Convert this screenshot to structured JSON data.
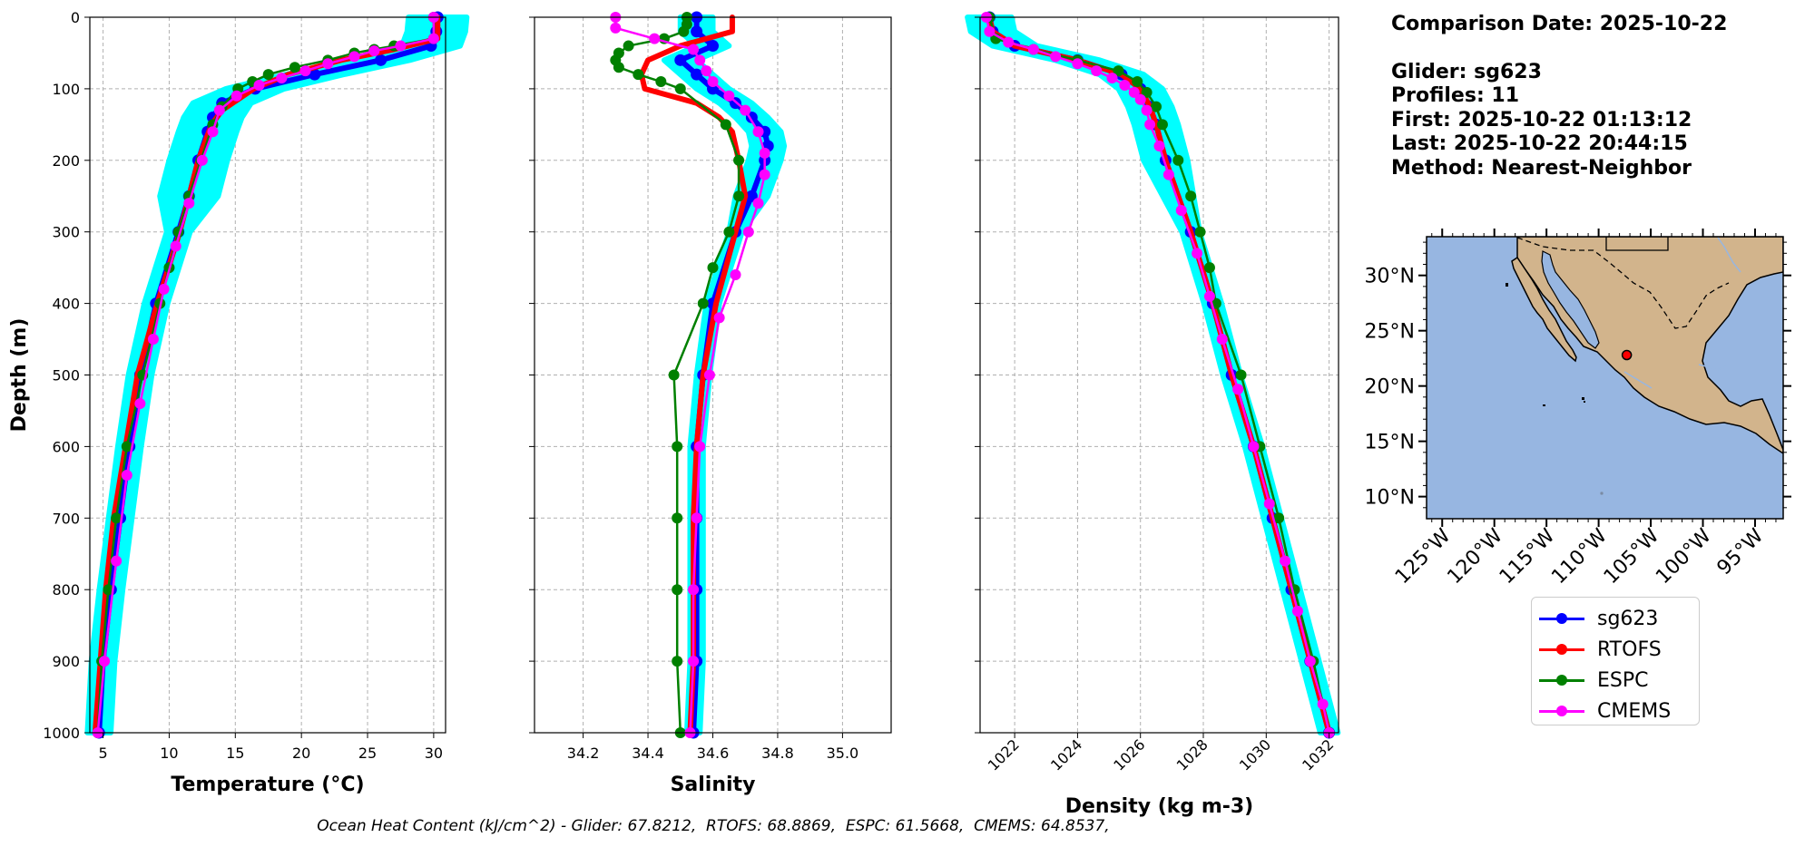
{
  "info": {
    "comparison": "Comparison Date: 2025-10-22",
    "glider": "Glider: sg623",
    "profiles": "Profiles: 11",
    "first": "First: 2025-10-22 01:13:12",
    "last": "Last: 2025-10-22 20:44:15",
    "method": "Method: Nearest-Neighbor"
  },
  "footer": "Ocean Heat Content (kJ/cm^2) - Glider: 67.8212,  RTOFS: 68.8869,  ESPC: 61.5668,  CMEMS: 64.8537,",
  "legend": [
    {
      "label": "sg623",
      "color": "#0000ff"
    },
    {
      "label": "RTOFS",
      "color": "#ff0000"
    },
    {
      "label": "ESPC",
      "color": "#008000"
    },
    {
      "label": "CMEMS",
      "color": "#ff00ff"
    }
  ],
  "colors": {
    "glider_profiles": "#00ffff",
    "sg623": "#0000ff",
    "RTOFS": "#ff0000",
    "ESPC": "#008000",
    "CMEMS": "#ff00ff",
    "ocean": "#97b6e1",
    "land": "#d2b48c",
    "glider_marker": "#ff0000"
  },
  "chart_data": [
    {
      "type": "line",
      "xlabel": "Temperature (°C)",
      "ylabel": "Depth (m)",
      "xlim": [
        4,
        30.9
      ],
      "ylim": [
        1000,
        0
      ],
      "xticks": [
        5,
        10,
        15,
        20,
        25,
        30
      ],
      "yticks": [
        0,
        100,
        200,
        300,
        400,
        500,
        600,
        700,
        800,
        900,
        1000
      ],
      "grid": true,
      "series": [
        {
          "name": "sg623",
          "depth": [
            0,
            20,
            40,
            60,
            80,
            100,
            120,
            140,
            160,
            200,
            250,
            300,
            400,
            500,
            600,
            700,
            800,
            900,
            1000
          ],
          "values": [
            30.3,
            30.2,
            29.8,
            26,
            21,
            16.5,
            14,
            13.3,
            12.9,
            12.2,
            11.5,
            10.7,
            9,
            7.8,
            7,
            6.3,
            5.6,
            5,
            4.7
          ]
        },
        {
          "name": "RTOFS",
          "depth": [
            0,
            30,
            45,
            60,
            80,
            100,
            130,
            150,
            200,
            300,
            400,
            500,
            600,
            700,
            800,
            900,
            1000
          ],
          "values": [
            30.3,
            30.3,
            27,
            23,
            19,
            16.4,
            14,
            13.2,
            12.2,
            10.8,
            9.1,
            7.6,
            6.7,
            5.8,
            5.2,
            4.8,
            4.4
          ]
        },
        {
          "name": "ESPC",
          "depth": [
            0,
            30,
            40,
            45,
            50,
            60,
            70,
            80,
            90,
            100,
            125,
            150,
            200,
            250,
            300,
            350,
            400,
            500,
            600,
            700,
            800,
            900,
            1000
          ],
          "values": [
            30,
            30,
            27,
            25.5,
            24,
            22,
            19.5,
            17.5,
            16.3,
            15.2,
            14,
            13.3,
            12.4,
            11.5,
            10.7,
            10,
            9.3,
            8,
            6.8,
            6,
            5.4,
            4.9,
            4.6
          ]
        },
        {
          "name": "CMEMS",
          "depth": [
            0,
            30,
            40,
            47,
            55,
            65,
            75,
            85,
            95,
            110,
            130,
            160,
            200,
            260,
            320,
            380,
            450,
            540,
            640,
            760,
            900,
            1000
          ],
          "values": [
            30,
            30,
            27.5,
            25.5,
            24,
            22,
            20.3,
            18.5,
            16.8,
            15.1,
            13.8,
            13.3,
            12.5,
            11.5,
            10.5,
            9.6,
            8.8,
            7.8,
            6.8,
            6,
            5.1,
            4.6
          ]
        }
      ]
    },
    {
      "type": "line",
      "xlabel": "Salinity",
      "ylabel": "",
      "xlim": [
        34.05,
        35.15
      ],
      "ylim": [
        1000,
        0
      ],
      "xticks": [
        34.2,
        34.4,
        34.6,
        34.8,
        35.0
      ],
      "grid": true,
      "series": [
        {
          "name": "sg623",
          "depth": [
            0,
            20,
            40,
            60,
            80,
            100,
            120,
            140,
            160,
            180,
            200,
            250,
            300,
            400,
            500,
            600,
            700,
            800,
            900,
            1000
          ],
          "values": [
            34.55,
            34.55,
            34.6,
            34.5,
            34.55,
            34.6,
            34.67,
            34.72,
            34.76,
            34.77,
            34.76,
            34.72,
            34.67,
            34.6,
            34.57,
            34.55,
            34.55,
            34.55,
            34.55,
            34.54
          ]
        },
        {
          "name": "RTOFS",
          "depth": [
            0,
            20,
            40,
            60,
            80,
            100,
            120,
            140,
            160,
            200,
            250,
            300,
            400,
            500,
            600,
            700,
            800,
            900,
            1000
          ],
          "values": [
            34.66,
            34.66,
            34.5,
            34.4,
            34.38,
            34.39,
            34.55,
            34.62,
            34.66,
            34.68,
            34.7,
            34.67,
            34.61,
            34.57,
            34.55,
            34.54,
            34.54,
            34.54,
            34.53
          ]
        },
        {
          "name": "ESPC",
          "depth": [
            0,
            10,
            20,
            30,
            40,
            50,
            60,
            70,
            80,
            90,
            100,
            150,
            200,
            250,
            300,
            350,
            400,
            500,
            600,
            700,
            800,
            900,
            1000
          ],
          "values": [
            34.52,
            34.52,
            34.51,
            34.45,
            34.34,
            34.31,
            34.3,
            34.31,
            34.37,
            34.44,
            34.5,
            34.64,
            34.68,
            34.68,
            34.65,
            34.6,
            34.57,
            34.48,
            34.49,
            34.49,
            34.49,
            34.49,
            34.5
          ]
        },
        {
          "name": "CMEMS",
          "depth": [
            0,
            15,
            30,
            45,
            60,
            75,
            90,
            110,
            130,
            160,
            190,
            220,
            260,
            300,
            360,
            420,
            500,
            600,
            700,
            800,
            900,
            1000
          ],
          "values": [
            34.3,
            34.3,
            34.42,
            34.54,
            34.56,
            34.58,
            34.6,
            34.65,
            34.7,
            34.74,
            34.76,
            34.76,
            34.74,
            34.71,
            34.67,
            34.62,
            34.59,
            34.56,
            34.55,
            34.54,
            34.54,
            34.53
          ]
        }
      ]
    },
    {
      "type": "line",
      "xlabel": "Density (kg m-3)",
      "ylabel": "",
      "xlim": [
        1020.9,
        1032.3
      ],
      "ylim": [
        1000,
        0
      ],
      "xticks": [
        1022,
        1024,
        1026,
        1028,
        1030,
        1032
      ],
      "grid": true,
      "series": [
        {
          "name": "sg623",
          "depth": [
            0,
            20,
            40,
            60,
            80,
            100,
            125,
            150,
            200,
            300,
            400,
            500,
            600,
            700,
            800,
            900,
            1000
          ],
          "values": [
            1021.2,
            1021.3,
            1022,
            1024,
            1025.4,
            1026,
            1026.3,
            1026.5,
            1026.8,
            1027.6,
            1028.3,
            1028.9,
            1029.6,
            1030.2,
            1030.8,
            1031.4,
            1032
          ]
        },
        {
          "name": "RTOFS",
          "depth": [
            0,
            20,
            40,
            60,
            80,
            100,
            125,
            150,
            200,
            300,
            400,
            500,
            600,
            700,
            800,
            900,
            1000
          ],
          "values": [
            1021.2,
            1021.3,
            1022,
            1024,
            1025.4,
            1026,
            1026.3,
            1026.5,
            1026.8,
            1027.6,
            1028.3,
            1028.9,
            1029.6,
            1030.2,
            1030.8,
            1031.4,
            1032
          ]
        },
        {
          "name": "ESPC",
          "depth": [
            0,
            30,
            45,
            60,
            75,
            90,
            105,
            125,
            150,
            200,
            250,
            300,
            350,
            400,
            500,
            600,
            700,
            800,
            900,
            1000
          ],
          "values": [
            1021.2,
            1021.4,
            1022.6,
            1024,
            1025.3,
            1025.9,
            1026.2,
            1026.5,
            1026.7,
            1027.2,
            1027.6,
            1027.9,
            1028.2,
            1028.4,
            1029.2,
            1029.8,
            1030.4,
            1030.9,
            1031.5,
            1032
          ]
        },
        {
          "name": "CMEMS",
          "depth": [
            0,
            20,
            35,
            45,
            55,
            65,
            75,
            85,
            95,
            105,
            115,
            130,
            150,
            180,
            220,
            270,
            330,
            390,
            450,
            520,
            600,
            680,
            760,
            830,
            900,
            960,
            1000
          ],
          "values": [
            1021.1,
            1021.2,
            1021.8,
            1022.6,
            1023.3,
            1024,
            1024.6,
            1025.1,
            1025.5,
            1025.8,
            1026,
            1026.2,
            1026.3,
            1026.6,
            1026.9,
            1027.3,
            1027.8,
            1028.2,
            1028.6,
            1029.1,
            1029.6,
            1030.1,
            1030.6,
            1031,
            1031.4,
            1031.8,
            1032
          ]
        }
      ]
    }
  ],
  "map": {
    "lat_ticks": [
      "30°N",
      "25°N",
      "20°N",
      "15°N",
      "10°N"
    ],
    "lat_values": [
      30,
      25,
      20,
      15,
      10
    ],
    "lon_ticks": [
      "125°W",
      "120°W",
      "115°W",
      "110°W",
      "105°W",
      "100°W",
      "95°W"
    ],
    "lon_values": [
      -125,
      -120,
      -115,
      -110,
      -105,
      -100,
      -95
    ],
    "lon_range": [
      -126.5,
      -92.3
    ],
    "lat_range": [
      8,
      33.5
    ],
    "glider_position": {
      "lon": -107.3,
      "lat": 22.8
    }
  }
}
